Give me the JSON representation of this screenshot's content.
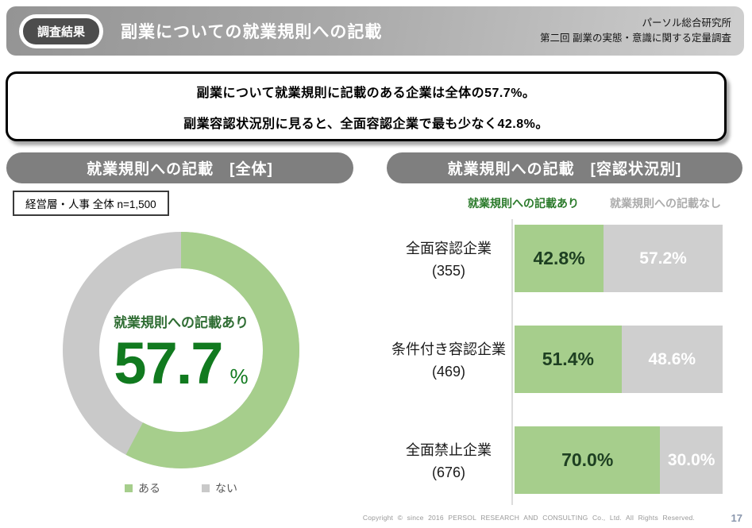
{
  "header": {
    "badge": "調査結果",
    "title": "副業についての就業規則への記載",
    "org": "パーソル総合研究所",
    "survey": "第二回 副業の実態・意識に関する定量調査"
  },
  "key_message": {
    "line1": "副業について就業規則に記載のある企業は全体の57.7%。",
    "line2": "副業容認状況別に見ると、全面容認企業で最も少なく42.8%。"
  },
  "left_panel": {
    "title": "就業規則への記載　[全体]",
    "sample_note": "経営層・人事 全体 n=1,500",
    "center_label": "就業規則への記載あり",
    "center_value": "57.7",
    "center_unit": "%",
    "legend": [
      {
        "label": "ある"
      },
      {
        "label": "ない"
      }
    ]
  },
  "right_panel": {
    "title": "就業規則への記載　[容認状況別]",
    "legend_yes": "就業規則への記載あり",
    "legend_no": "就業規則への記載なし",
    "rows": [
      {
        "category": "全面容認企業",
        "n": "(355)",
        "yes_label": "42.8%",
        "no_label": "57.2%"
      },
      {
        "category": "条件付き容認企業",
        "n": "(469)",
        "yes_label": "51.4%",
        "no_label": "48.6%"
      },
      {
        "category": "全面禁止企業",
        "n": "(676)",
        "yes_label": "70.0%",
        "no_label": "30.0%"
      }
    ]
  },
  "footer": {
    "copyright": "Copyright © since 2016 PERSOL RESEARCH AND CONSULTING Co., Ltd. All Rights Reserved.",
    "page": "17"
  },
  "colors": {
    "green_fill": "#a6ce8c",
    "gray_fill_donut": "#c9c9c9",
    "gray_fill_bar": "#cfcfcf",
    "green_number": "#117a1f",
    "green_dark_label": "#1e4022",
    "pill_gray": "#7f7f7f"
  },
  "chart_data": [
    {
      "type": "pie",
      "subtype": "donut",
      "title": "就業規則への記載 [全体]",
      "n": 1500,
      "labels": [
        "ある",
        "ない"
      ],
      "values": [
        57.7,
        42.3
      ],
      "colors": [
        "#a6ce8c",
        "#c9c9c9"
      ],
      "center_label": "就業規則への記載あり",
      "center_value": 57.7,
      "start_angle_deg": 0,
      "direction": "clockwise",
      "legend_position": "bottom"
    },
    {
      "type": "bar",
      "subtype": "horizontal-stacked-100pct",
      "title": "就業規則への記載 [容認状況別]",
      "categories": [
        "全面容認企業 (355)",
        "条件付き容認企業 (469)",
        "全面禁止企業 (676)"
      ],
      "series": [
        {
          "name": "就業規則への記載あり",
          "values": [
            42.8,
            51.4,
            70.0
          ],
          "color": "#a6ce8c"
        },
        {
          "name": "就業規則への記載なし",
          "values": [
            57.2,
            48.6,
            30.0
          ],
          "color": "#cfcfcf"
        }
      ],
      "xlim": [
        0,
        100
      ],
      "legend_position": "top"
    }
  ]
}
